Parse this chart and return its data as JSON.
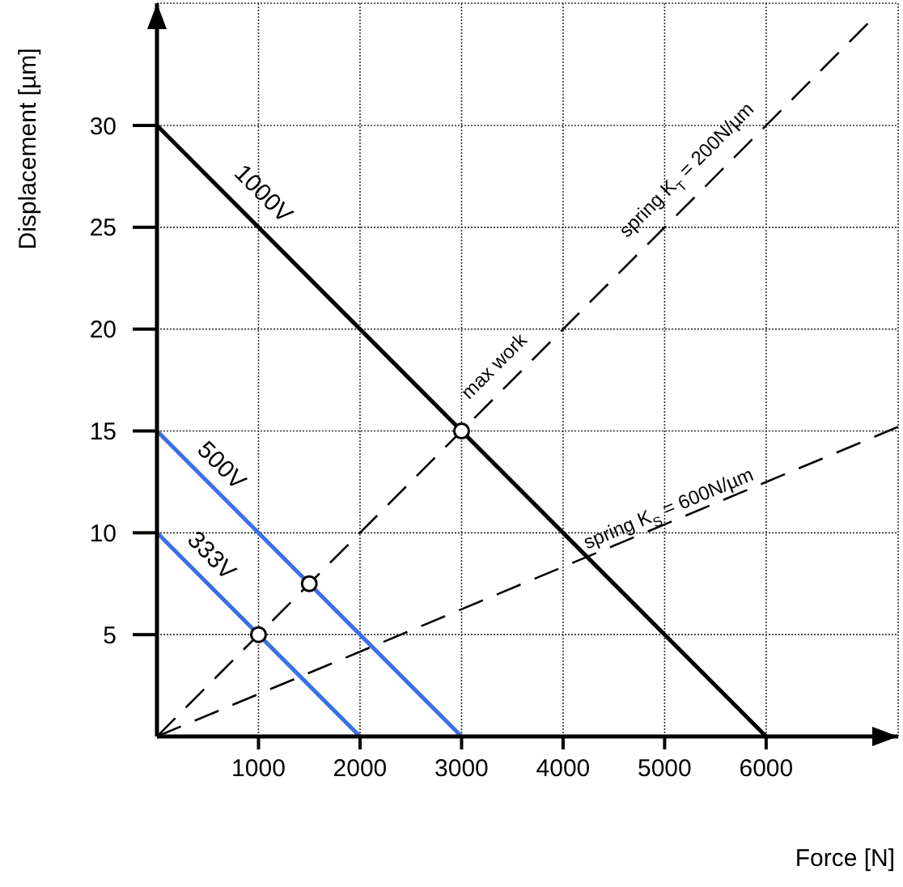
{
  "chart_data": {
    "type": "line",
    "xlabel": "Force [N]",
    "ylabel": "Displacement [µm]",
    "xlim": [
      0,
      7300
    ],
    "ylim": [
      0,
      36
    ],
    "xticks": [
      1000,
      2000,
      3000,
      4000,
      5000,
      6000
    ],
    "yticks": [
      5,
      10,
      15,
      20,
      25,
      30
    ],
    "grid": true,
    "series": [
      {
        "name": "1000V",
        "color": "#000000",
        "x": [
          0,
          6000
        ],
        "values": [
          30,
          0
        ],
        "marker": "none",
        "line_style": "solid"
      },
      {
        "name": "500V",
        "color": "#3b6fe6",
        "x": [
          0,
          3000
        ],
        "values": [
          15,
          0
        ],
        "marker": "none",
        "line_style": "solid"
      },
      {
        "name": "333V",
        "color": "#3b6fe6",
        "x": [
          0,
          2000
        ],
        "values": [
          10,
          0
        ],
        "marker": "none",
        "line_style": "solid"
      },
      {
        "name": "spring K$_{T}$ = 200N/µm",
        "color": "#000000",
        "x": [
          0,
          7000
        ],
        "values": [
          0,
          35
        ],
        "marker": "none",
        "line_style": "dashed"
      },
      {
        "name": "spring K$_{S}$ = 600N/µm",
        "color": "#000000",
        "x": [
          0,
          7300
        ],
        "values": [
          0,
          15.2
        ],
        "marker": "none",
        "line_style": "dashed"
      },
      {
        "type": "scatter",
        "color": "#000000",
        "x": [
          1000,
          1500,
          3000
        ],
        "values": [
          5,
          7.5,
          15
        ],
        "marker": "circle"
      }
    ],
    "annotations": [
      {
        "text": "max work",
        "x": 3000,
        "y": 15
      }
    ]
  }
}
